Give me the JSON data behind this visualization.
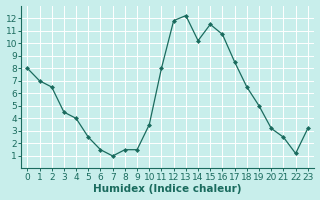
{
  "x": [
    0,
    1,
    2,
    3,
    4,
    5,
    6,
    7,
    8,
    9,
    10,
    11,
    12,
    13,
    14,
    15,
    16,
    17,
    18,
    19,
    20,
    21,
    22,
    23
  ],
  "y": [
    8.0,
    7.0,
    6.5,
    4.5,
    4.0,
    2.5,
    1.5,
    1.0,
    1.5,
    1.5,
    3.5,
    8.0,
    11.8,
    12.2,
    10.2,
    11.5,
    10.7,
    8.5,
    6.5,
    5.0,
    3.2,
    2.5,
    1.2,
    3.2
  ],
  "xlabel": "Humidex (Indice chaleur)",
  "xlim": [
    -0.5,
    23.5
  ],
  "ylim": [
    0.0,
    13.0
  ],
  "xtick_labels": [
    "0",
    "1",
    "2",
    "3",
    "4",
    "5",
    "6",
    "7",
    "8",
    "9",
    "10",
    "11",
    "12",
    "13",
    "14",
    "15",
    "16",
    "17",
    "18",
    "19",
    "20",
    "21",
    "22",
    "23"
  ],
  "ytick_labels": [
    "1",
    "2",
    "3",
    "4",
    "5",
    "6",
    "7",
    "8",
    "9",
    "10",
    "11",
    "12"
  ],
  "line_color": "#1a6b5e",
  "marker_color": "#1a6b5e",
  "bg_color": "#c8eeeb",
  "grid_color": "#f0f0f0",
  "tick_color": "#1a6b5e",
  "xlabel_fontsize": 7.5,
  "tick_fontsize": 6.5
}
